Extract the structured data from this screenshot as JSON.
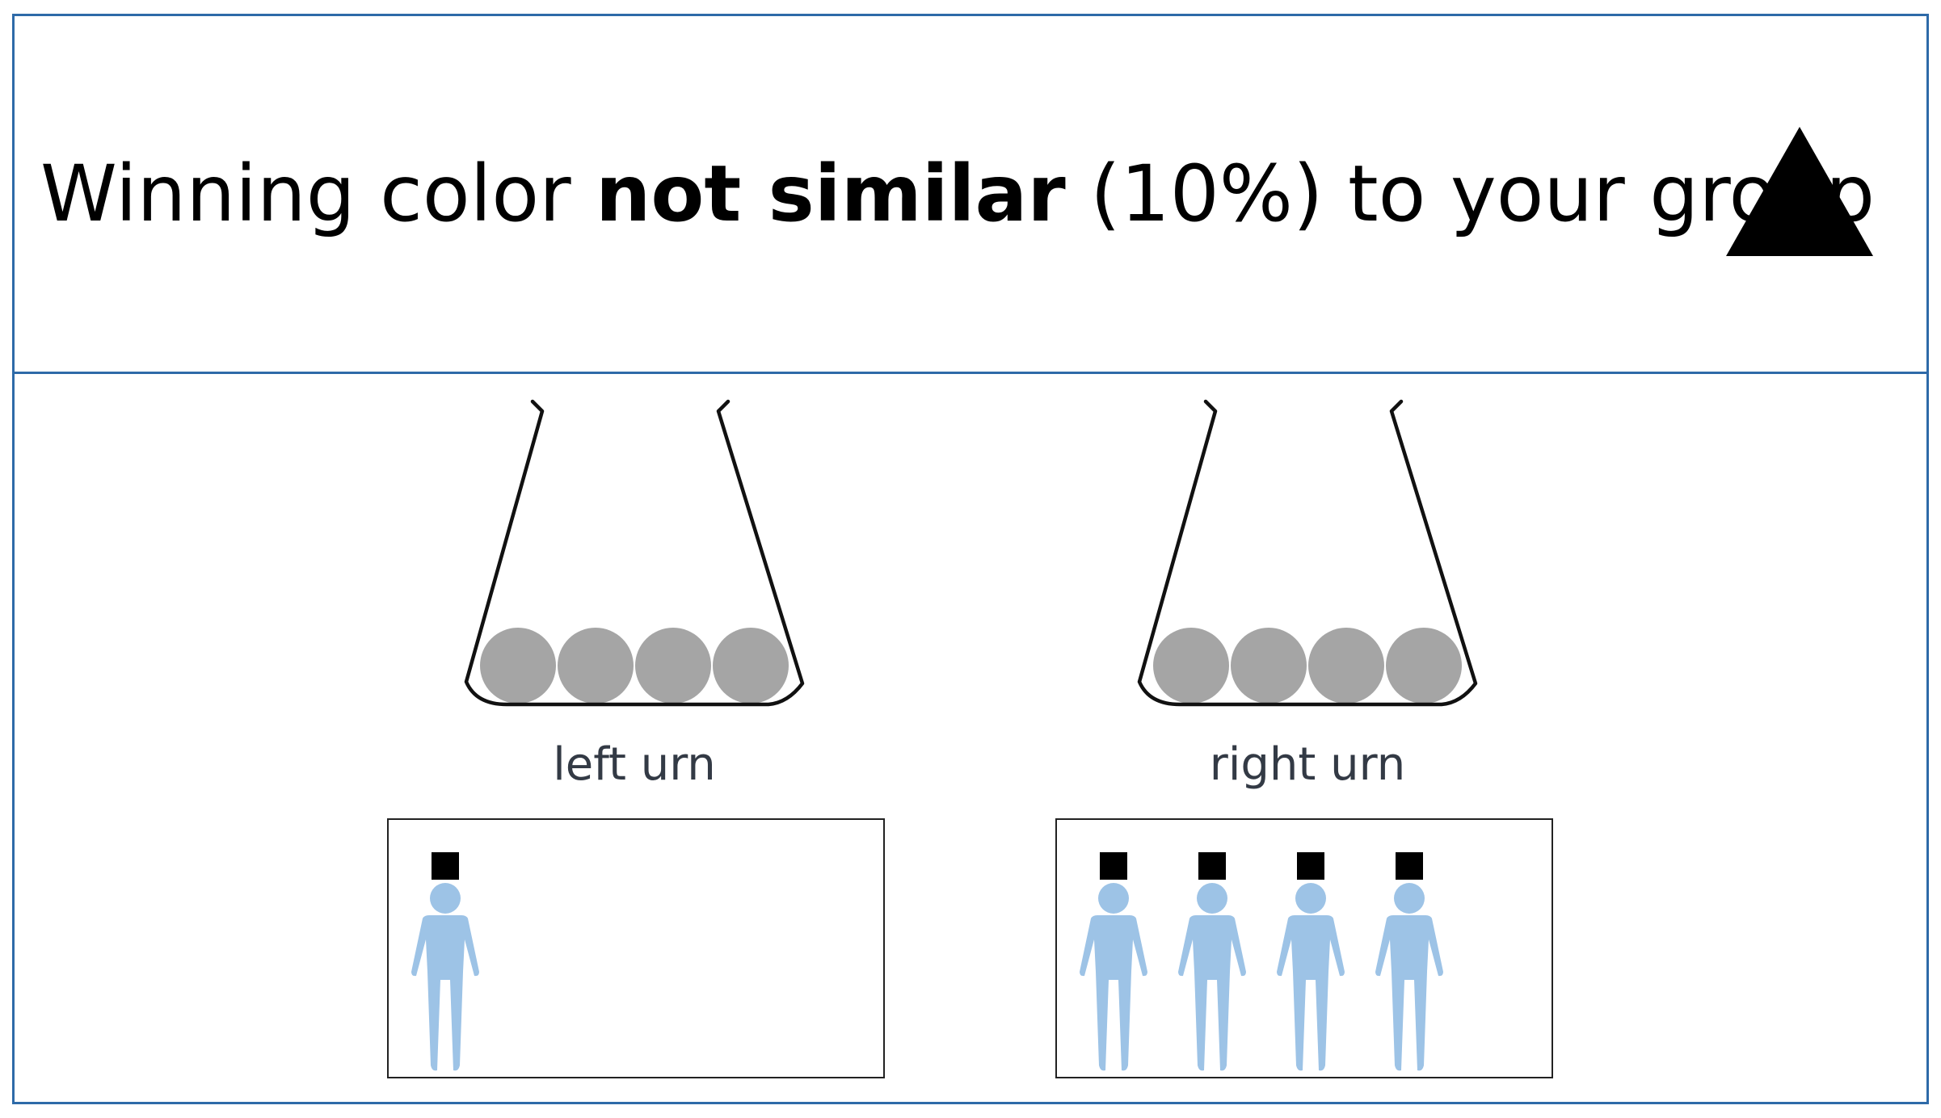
{
  "header": {
    "title_part1": "Winning color ",
    "title_emphasis": "not similar",
    "title_part2": " (10%) to your group",
    "symbol_icon": "triangle-icon",
    "symbol_color": "#000000"
  },
  "urns": {
    "left": {
      "label": "left urn",
      "ball_count": 4,
      "ball_color": "#a5a5a5"
    },
    "right": {
      "label": "right urn",
      "ball_count": 4,
      "ball_color": "#a5a5a5"
    }
  },
  "groups": {
    "left": {
      "person_count": 1,
      "marker": "square-icon",
      "marker_color": "#000000",
      "person_color": "#9dc3e6"
    },
    "right": {
      "person_count": 4,
      "marker": "square-icon",
      "marker_color": "#000000",
      "person_color": "#9dc3e6"
    }
  },
  "colors": {
    "frame": "#2e6aa8",
    "urn_outline": "#111111"
  }
}
